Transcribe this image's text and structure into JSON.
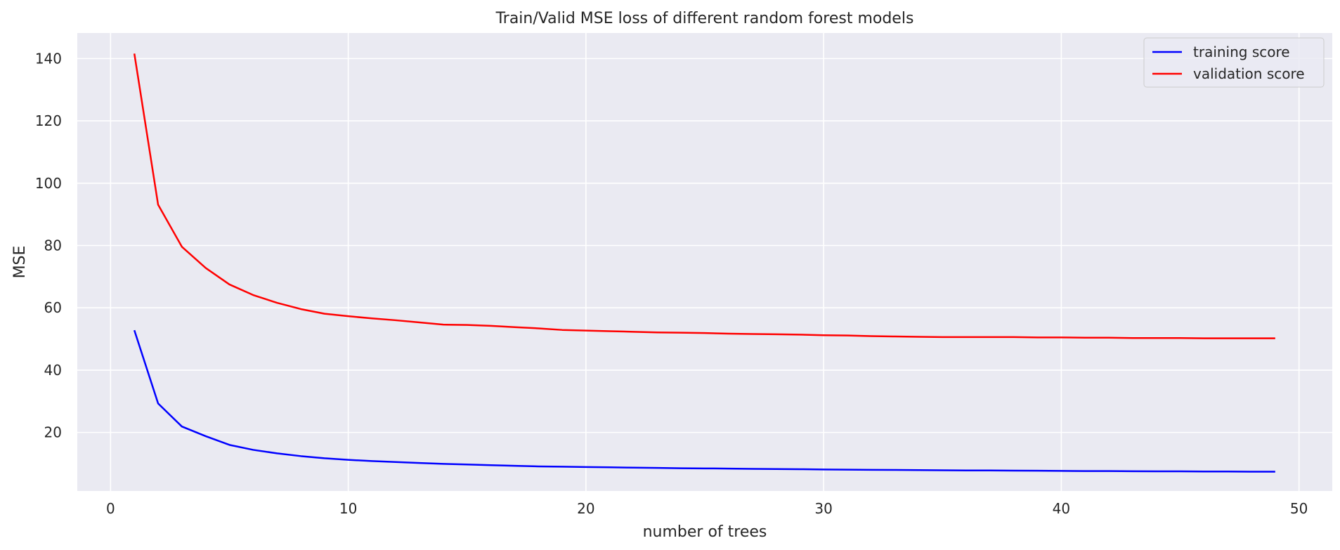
{
  "chart_data": {
    "type": "line",
    "title": "Train/Valid MSE loss of different random forest models",
    "xlabel": "number of trees",
    "ylabel": "MSE",
    "xlim": [
      -1.4,
      51.4
    ],
    "ylim": [
      1.2,
      148.2
    ],
    "xticks": [
      0,
      10,
      20,
      30,
      40,
      50
    ],
    "yticks": [
      20,
      40,
      60,
      80,
      100,
      120,
      140
    ],
    "grid": true,
    "legend_position": "top-right",
    "colors": {
      "background": "#eaeaf2",
      "grid": "#ffffff"
    },
    "x": [
      1,
      2,
      3,
      4,
      5,
      6,
      7,
      8,
      9,
      10,
      11,
      12,
      13,
      14,
      15,
      16,
      17,
      18,
      19,
      20,
      21,
      22,
      23,
      24,
      25,
      26,
      27,
      28,
      29,
      30,
      31,
      32,
      33,
      34,
      35,
      36,
      37,
      38,
      39,
      40,
      41,
      42,
      43,
      44,
      45,
      46,
      47,
      48,
      49
    ],
    "series": [
      {
        "name": "training score",
        "color": "#0000ff",
        "values": [
          52.8,
          29.3,
          21.9,
          18.8,
          16.0,
          14.4,
          13.3,
          12.4,
          11.7,
          11.2,
          10.8,
          10.5,
          10.2,
          9.9,
          9.7,
          9.5,
          9.3,
          9.1,
          9.0,
          8.9,
          8.8,
          8.7,
          8.6,
          8.5,
          8.45,
          8.4,
          8.3,
          8.25,
          8.2,
          8.1,
          8.05,
          8.0,
          7.95,
          7.9,
          7.85,
          7.8,
          7.8,
          7.75,
          7.7,
          7.65,
          7.6,
          7.6,
          7.55,
          7.5,
          7.5,
          7.45,
          7.45,
          7.4,
          7.4
        ]
      },
      {
        "name": "validation score",
        "color": "#ff0000",
        "values": [
          141.6,
          93.1,
          79.6,
          72.8,
          67.5,
          64.1,
          61.6,
          59.6,
          58.1,
          57.3,
          56.6,
          56.0,
          55.3,
          54.6,
          54.5,
          54.2,
          53.8,
          53.4,
          52.9,
          52.7,
          52.5,
          52.3,
          52.1,
          52.0,
          51.9,
          51.7,
          51.6,
          51.5,
          51.4,
          51.2,
          51.1,
          50.9,
          50.8,
          50.7,
          50.6,
          50.6,
          50.6,
          50.6,
          50.5,
          50.5,
          50.4,
          50.4,
          50.3,
          50.3,
          50.3,
          50.2,
          50.2,
          50.2,
          50.2
        ]
      }
    ]
  }
}
